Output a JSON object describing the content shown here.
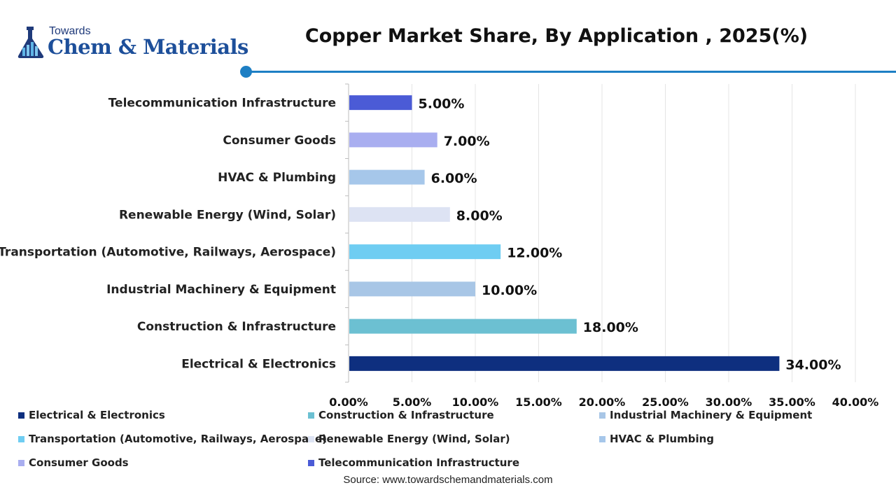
{
  "brand": {
    "top": "Towards",
    "main": "Chem & Materials"
  },
  "chart_data": {
    "type": "bar",
    "orientation": "horizontal",
    "title": "Copper Market Share, By Application , 2025(%)",
    "categories": [
      "Telecommunication Infrastructure",
      "Consumer Goods",
      "HVAC & Plumbing",
      "Renewable Energy (Wind, Solar)",
      "Transportation (Automotive, Railways, Aerospace)",
      "Industrial Machinery & Equipment",
      "Construction & Infrastructure",
      "Electrical & Electronics"
    ],
    "values": [
      5,
      7,
      6,
      8,
      12,
      10,
      18,
      34
    ],
    "value_labels": [
      "5.00%",
      "7.00%",
      "6.00%",
      "8.00%",
      "12.00%",
      "10.00%",
      "18.00%",
      "34.00%"
    ],
    "colors": [
      "#4b5bd6",
      "#a9aef0",
      "#a6c7ea",
      "#dde3f3",
      "#6fcdf2",
      "#a8c6e6",
      "#6cc0d2",
      "#0e2f7f"
    ],
    "xlim": [
      0,
      40
    ],
    "xticks": [
      0,
      5,
      10,
      15,
      20,
      25,
      30,
      35,
      40
    ],
    "xtick_labels": [
      "0.00%",
      "5.00%",
      "10.00%",
      "15.00%",
      "20.00%",
      "25.00%",
      "30.00%",
      "35.00%",
      "40.00%"
    ],
    "grid": "vertical",
    "legend": {
      "placement": "bottom",
      "entries": [
        {
          "label": "Electrical & Electronics",
          "color": "#0e2f7f"
        },
        {
          "label": "Construction & Infrastructure",
          "color": "#6cc0d2"
        },
        {
          "label": "Industrial Machinery & Equipment",
          "color": "#a8c6e6"
        },
        {
          "label": "Transportation (Automotive, Railways, Aerospace)",
          "color": "#6fcdf2"
        },
        {
          "label": "Renewable Energy (Wind, Solar)",
          "color": "#dde3f3"
        },
        {
          "label": "HVAC & Plumbing",
          "color": "#a6c7ea"
        },
        {
          "label": "Consumer Goods",
          "color": "#a9aef0"
        },
        {
          "label": "Telecommunication Infrastructure",
          "color": "#4b5bd6"
        }
      ]
    },
    "source": "Source: www.towardschemandmaterials.com"
  }
}
